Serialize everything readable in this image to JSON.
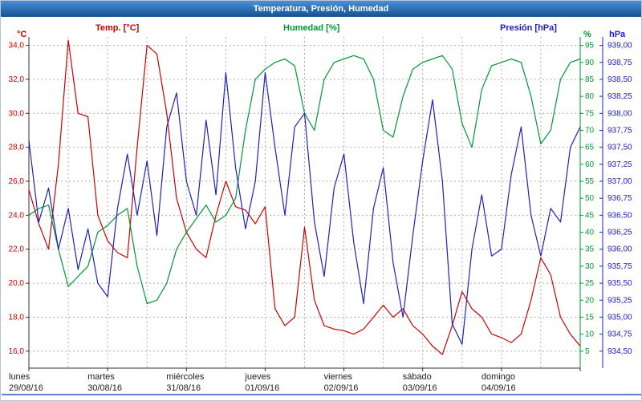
{
  "window": {
    "title": "Temperatura, Presión, Humedad"
  },
  "legend": {
    "temp": "Temp. [°C]",
    "humidity": "Humedad [%]",
    "pressure": "Presión [hPa]"
  },
  "axes": {
    "left": {
      "unit": "°C",
      "color": "#cc0000",
      "tick_labels": [
        "34,0",
        "32,0",
        "30,0",
        "28,0",
        "26,0",
        "24,0",
        "22,0",
        "20,0",
        "18,0",
        "16,0"
      ]
    },
    "humidity": {
      "unit": "%",
      "color": "#009933",
      "tick_labels": [
        "95",
        "90",
        "85",
        "80",
        "75",
        "70",
        "65",
        "60",
        "55",
        "50",
        "45",
        "40",
        "35",
        "30",
        "25",
        "20",
        "15",
        "10",
        "5"
      ]
    },
    "pressure": {
      "unit": "hPa",
      "color": "#2020c0",
      "tick_labels": [
        "939,00",
        "938,75",
        "938,50",
        "938,25",
        "938,00",
        "937,75",
        "937,50",
        "937,25",
        "937,00",
        "936,75",
        "936,50",
        "936,25",
        "936,00",
        "935,75",
        "935,50",
        "935,25",
        "935,00",
        "934,75",
        "934,50"
      ]
    }
  },
  "chart_data": {
    "type": "line",
    "title": "Temperatura, Presión, Humedad",
    "x": {
      "unit": "hours",
      "step_hours": 3,
      "total_hours": 168
    },
    "days": [
      {
        "name": "lunes",
        "date": "29/08/16"
      },
      {
        "name": "martes",
        "date": "30/08/16"
      },
      {
        "name": "miércoles",
        "date": "31/08/16"
      },
      {
        "name": "jueves",
        "date": "01/09/16"
      },
      {
        "name": "viernes",
        "date": "02/09/16"
      },
      {
        "name": "sábado",
        "date": "03/09/16"
      },
      {
        "name": "domingo",
        "date": "04/09/16"
      }
    ],
    "axis_ranges": {
      "temp": [
        15.0,
        34.5
      ],
      "humidity": [
        0,
        97.5
      ],
      "pressure": [
        934.25,
        939.125
      ]
    },
    "grid": {
      "h_lines_at_left_ticks": true,
      "v_lines_every_hours": 12
    },
    "legend_position": "top",
    "series": [
      {
        "name": "Temp. [°C]",
        "axis": "temp",
        "color": "#cc0000",
        "values": [
          25.5,
          23.5,
          22.0,
          27.0,
          34.3,
          30.0,
          29.8,
          24.0,
          22.5,
          21.8,
          21.5,
          28.0,
          34.0,
          33.5,
          30.0,
          25.0,
          23.0,
          22.0,
          21.5,
          24.0,
          26.0,
          24.5,
          24.3,
          23.5,
          24.5,
          18.5,
          17.5,
          18.0,
          23.3,
          19.0,
          17.5,
          17.3,
          17.2,
          17.0,
          17.3,
          18.0,
          18.7,
          18.0,
          18.5,
          17.5,
          17.0,
          16.3,
          15.8,
          17.5,
          19.5,
          18.5,
          18.0,
          17.0,
          16.8,
          16.5,
          17.0,
          19.0,
          21.5,
          20.5,
          18.0,
          17.0,
          16.3
        ]
      },
      {
        "name": "Humedad [%]",
        "axis": "humidity",
        "color": "#009933",
        "values": [
          45,
          47,
          48,
          35,
          24,
          27,
          30,
          40,
          42,
          45,
          47,
          30,
          19,
          20,
          25,
          35,
          40,
          44,
          48,
          43,
          45,
          50,
          70,
          85,
          88,
          90,
          91,
          89,
          75,
          70,
          85,
          90,
          91,
          92,
          91,
          85,
          70,
          68,
          80,
          88,
          90,
          91,
          92,
          88,
          72,
          65,
          82,
          89,
          90,
          91,
          90,
          80,
          66,
          70,
          85,
          90,
          91
        ]
      },
      {
        "name": "Presión [hPa]",
        "axis": "pressure",
        "color": "#2020c0",
        "values": [
          937.6,
          936.4,
          936.9,
          936.0,
          936.6,
          935.7,
          936.3,
          935.5,
          935.3,
          936.6,
          937.4,
          936.5,
          937.3,
          936.2,
          937.8,
          938.3,
          937.0,
          936.5,
          937.9,
          936.8,
          938.6,
          937.2,
          936.3,
          937.0,
          938.6,
          937.5,
          936.5,
          937.8,
          938.0,
          936.4,
          935.6,
          936.9,
          937.4,
          936.1,
          935.2,
          936.6,
          937.2,
          935.8,
          935.0,
          936.2,
          937.3,
          938.2,
          937.0,
          934.9,
          934.6,
          936.0,
          936.8,
          935.9,
          936.0,
          937.1,
          937.8,
          936.5,
          935.9,
          936.6,
          936.4,
          937.5,
          937.8
        ]
      }
    ]
  }
}
